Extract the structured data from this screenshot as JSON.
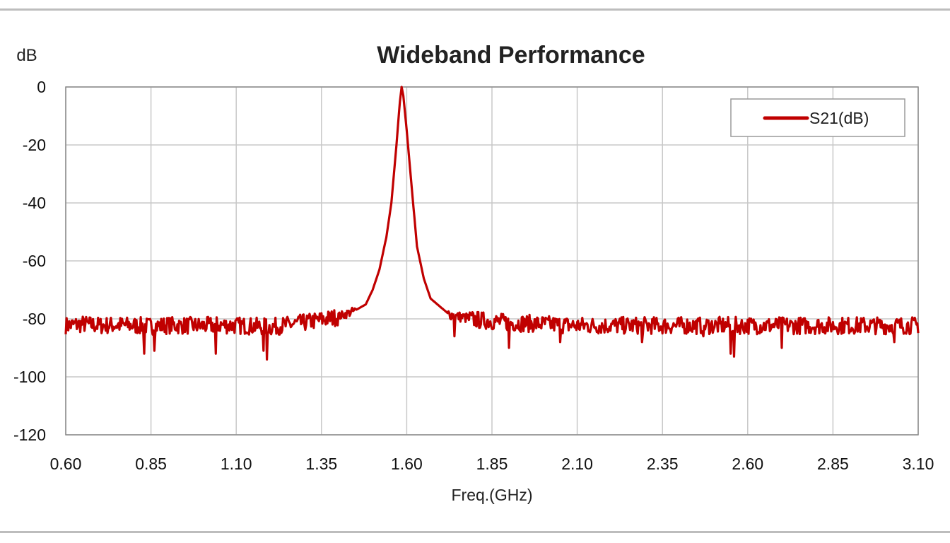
{
  "chart_data": {
    "type": "line",
    "title": "Wideband Performance",
    "xlabel": "Freq.(GHz)",
    "ylabel": "dB",
    "xlim": [
      0.6,
      3.1
    ],
    "ylim": [
      -120,
      0
    ],
    "x_ticks": [
      "0.60",
      "0.85",
      "1.10",
      "1.35",
      "1.60",
      "1.85",
      "2.10",
      "2.35",
      "2.60",
      "2.85",
      "3.10"
    ],
    "y_ticks": [
      "0",
      "-20",
      "-40",
      "-60",
      "-80",
      "-100",
      "-120"
    ],
    "grid": true,
    "legend_position": "top-right",
    "series": [
      {
        "name": "S21(dB)",
        "color": "#c00000",
        "points": [
          [
            0.6,
            -82
          ],
          [
            0.65,
            -81.5
          ],
          [
            0.7,
            -82
          ],
          [
            0.75,
            -81.8
          ],
          [
            0.8,
            -82
          ],
          [
            0.85,
            -82.2
          ],
          [
            0.9,
            -81.9
          ],
          [
            0.95,
            -82
          ],
          [
            1.0,
            -82.1
          ],
          [
            1.05,
            -81.8
          ],
          [
            1.1,
            -82
          ],
          [
            1.15,
            -82.2
          ],
          [
            1.2,
            -82.5
          ],
          [
            1.25,
            -81.8
          ],
          [
            1.3,
            -81
          ],
          [
            1.35,
            -80
          ],
          [
            1.4,
            -79
          ],
          [
            1.45,
            -77
          ],
          [
            1.48,
            -75
          ],
          [
            1.5,
            -70
          ],
          [
            1.52,
            -63
          ],
          [
            1.54,
            -52
          ],
          [
            1.555,
            -40
          ],
          [
            1.57,
            -20
          ],
          [
            1.58,
            -5
          ],
          [
            1.585,
            0
          ],
          [
            1.59,
            -3
          ],
          [
            1.6,
            -15
          ],
          [
            1.615,
            -35
          ],
          [
            1.63,
            -55
          ],
          [
            1.65,
            -66
          ],
          [
            1.67,
            -73
          ],
          [
            1.7,
            -76
          ],
          [
            1.72,
            -78
          ],
          [
            1.75,
            -79
          ],
          [
            1.8,
            -80
          ],
          [
            1.85,
            -80.5
          ],
          [
            1.9,
            -81
          ],
          [
            2.0,
            -81.5
          ],
          [
            2.1,
            -82
          ],
          [
            2.2,
            -82
          ],
          [
            2.3,
            -82
          ],
          [
            2.4,
            -82
          ],
          [
            2.5,
            -82
          ],
          [
            2.6,
            -82
          ],
          [
            2.7,
            -82
          ],
          [
            2.8,
            -82
          ],
          [
            2.9,
            -82
          ],
          [
            3.0,
            -82
          ],
          [
            3.1,
            -82
          ]
        ],
        "noise_floor": {
          "from_x_low": 0.6,
          "to_x_low": 1.45,
          "from_x_high": 1.72,
          "to_x_high": 3.1,
          "level": -82,
          "spread": 6
        },
        "dips": [
          [
            0.83,
            -92
          ],
          [
            0.86,
            -91
          ],
          [
            1.04,
            -92
          ],
          [
            1.19,
            -94
          ],
          [
            1.18,
            -91
          ],
          [
            2.55,
            -92
          ],
          [
            2.56,
            -93
          ],
          [
            1.74,
            -86
          ],
          [
            1.9,
            -90
          ],
          [
            2.05,
            -88
          ],
          [
            2.29,
            -88
          ],
          [
            2.47,
            -86
          ],
          [
            2.7,
            -90
          ],
          [
            3.03,
            -88
          ]
        ]
      }
    ]
  }
}
